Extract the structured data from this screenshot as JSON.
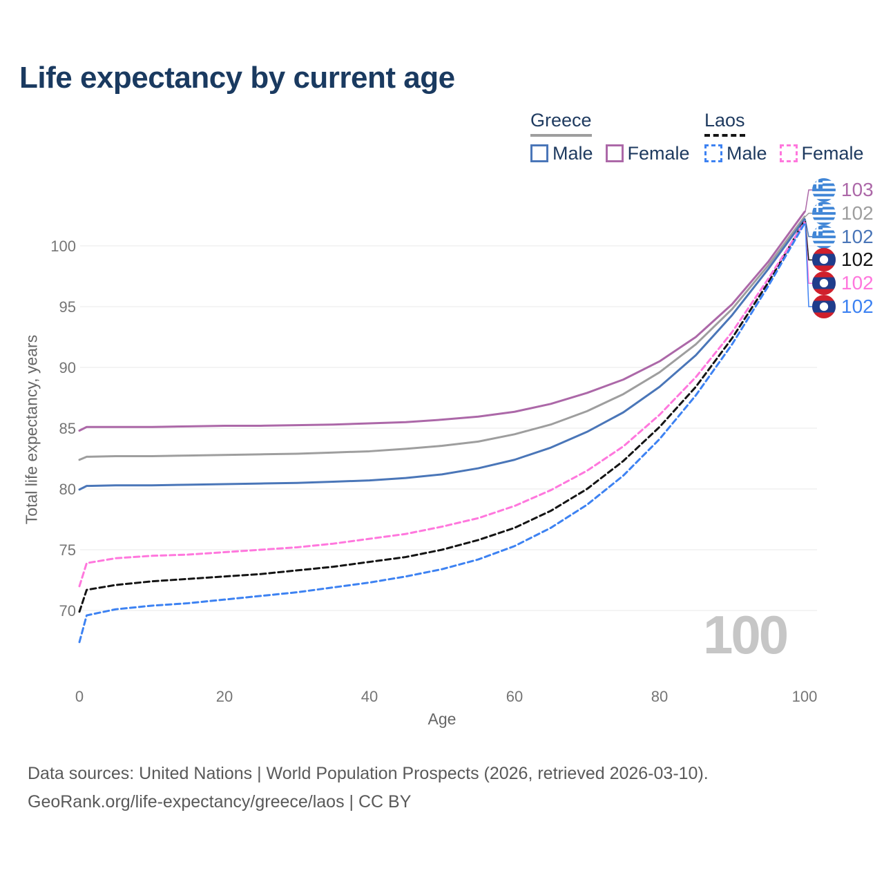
{
  "title": "Life expectancy by current age",
  "legend": {
    "groups": [
      {
        "label": "Greece",
        "line_style": "solid",
        "color": "#9e9e9e",
        "items": [
          {
            "label": "Male",
            "color": "#4a76b8",
            "dash": false
          },
          {
            "label": "Female",
            "color": "#ac68a8",
            "dash": false
          }
        ]
      },
      {
        "label": "Laos",
        "line_style": "dashed",
        "color": "#141414",
        "items": [
          {
            "label": "Male",
            "color": "#3d82f2",
            "dash": true
          },
          {
            "label": "Female",
            "color": "#ff77dd",
            "dash": true
          }
        ]
      }
    ]
  },
  "chart_data": {
    "type": "line",
    "title": "Life expectancy by current age",
    "xlabel": "Age",
    "ylabel": "Total life expectancy, years",
    "watermark": "100",
    "grid": "horizontal",
    "legend_position": "top-right",
    "xlim": [
      0,
      100
    ],
    "ylim": [
      67,
      103
    ],
    "xticks": [
      0,
      20,
      40,
      60,
      80,
      100
    ],
    "yticks": [
      70,
      75,
      80,
      85,
      90,
      95,
      100
    ],
    "x": [
      0,
      1,
      5,
      10,
      15,
      20,
      25,
      30,
      35,
      40,
      45,
      50,
      55,
      60,
      65,
      70,
      75,
      80,
      85,
      90,
      95,
      100
    ],
    "series": [
      {
        "name": "Greece Female",
        "country": "Greece",
        "sex": "Female",
        "flag": "greece",
        "color": "#ac68a8",
        "dash": false,
        "end_label": "103",
        "values": [
          84.8,
          85.1,
          85.1,
          85.1,
          85.15,
          85.2,
          85.2,
          85.25,
          85.3,
          85.4,
          85.5,
          85.7,
          85.95,
          86.35,
          87.0,
          87.9,
          89.0,
          90.5,
          92.5,
          95.2,
          98.7,
          102.8
        ]
      },
      {
        "name": "Greece Both sexes",
        "country": "Greece",
        "sex": "Both",
        "flag": "greece",
        "color": "#9e9e9e",
        "dash": false,
        "end_label": "102",
        "values": [
          82.4,
          82.65,
          82.7,
          82.7,
          82.75,
          82.8,
          82.85,
          82.9,
          83.0,
          83.1,
          83.3,
          83.55,
          83.9,
          84.5,
          85.3,
          86.4,
          87.8,
          89.6,
          91.9,
          94.8,
          98.4,
          102.4
        ]
      },
      {
        "name": "Greece Male",
        "country": "Greece",
        "sex": "Male",
        "flag": "greece",
        "color": "#4a76b8",
        "dash": false,
        "end_label": "102",
        "values": [
          79.95,
          80.25,
          80.3,
          80.3,
          80.35,
          80.4,
          80.45,
          80.5,
          80.6,
          80.7,
          80.9,
          81.2,
          81.7,
          82.4,
          83.4,
          84.7,
          86.3,
          88.4,
          91.0,
          94.3,
          98.1,
          102.2
        ]
      },
      {
        "name": "Laos Both sexes",
        "country": "Laos",
        "sex": "Both",
        "flag": "laos",
        "color": "#141414",
        "dash": true,
        "end_label": "102",
        "values": [
          69.9,
          71.7,
          72.1,
          72.4,
          72.6,
          72.8,
          73.0,
          73.3,
          73.6,
          74.0,
          74.4,
          75.0,
          75.8,
          76.8,
          78.2,
          80.0,
          82.3,
          85.1,
          88.4,
          92.4,
          97.0,
          102.05
        ]
      },
      {
        "name": "Laos Female",
        "country": "Laos",
        "sex": "Female",
        "flag": "laos",
        "color": "#ff77dd",
        "dash": true,
        "end_label": "102",
        "values": [
          72.0,
          73.9,
          74.3,
          74.5,
          74.6,
          74.8,
          75.0,
          75.2,
          75.5,
          75.9,
          76.3,
          76.9,
          77.6,
          78.6,
          79.9,
          81.5,
          83.5,
          86.1,
          89.2,
          92.9,
          97.3,
          101.95
        ]
      },
      {
        "name": "Laos Male",
        "country": "Laos",
        "sex": "Male",
        "flag": "laos",
        "color": "#3d82f2",
        "dash": true,
        "end_label": "102",
        "values": [
          67.4,
          69.6,
          70.1,
          70.4,
          70.6,
          70.9,
          71.2,
          71.5,
          71.9,
          72.3,
          72.8,
          73.4,
          74.2,
          75.3,
          76.8,
          78.7,
          81.1,
          84.1,
          87.7,
          91.9,
          96.7,
          101.85
        ]
      }
    ]
  },
  "footer": {
    "line1": "Data sources: United Nations | World Population Prospects (2026, retrieved 2026-03-10).",
    "line2": "GeoRank.org/life-expectancy/greece/laos | CC BY"
  },
  "colors": {
    "title_text": "#1a3a60",
    "legend_text": "#1e3a5f",
    "tick_text": "#757575",
    "axis_title_text": "#666666",
    "gridline": "#e8e8e8",
    "watermark": "#c6c6c6",
    "footer_text": "#595959",
    "greece_flag_blue": "#3f85d6",
    "laos_flag_red": "#d0202c",
    "laos_flag_blue": "#1f3d8c"
  }
}
